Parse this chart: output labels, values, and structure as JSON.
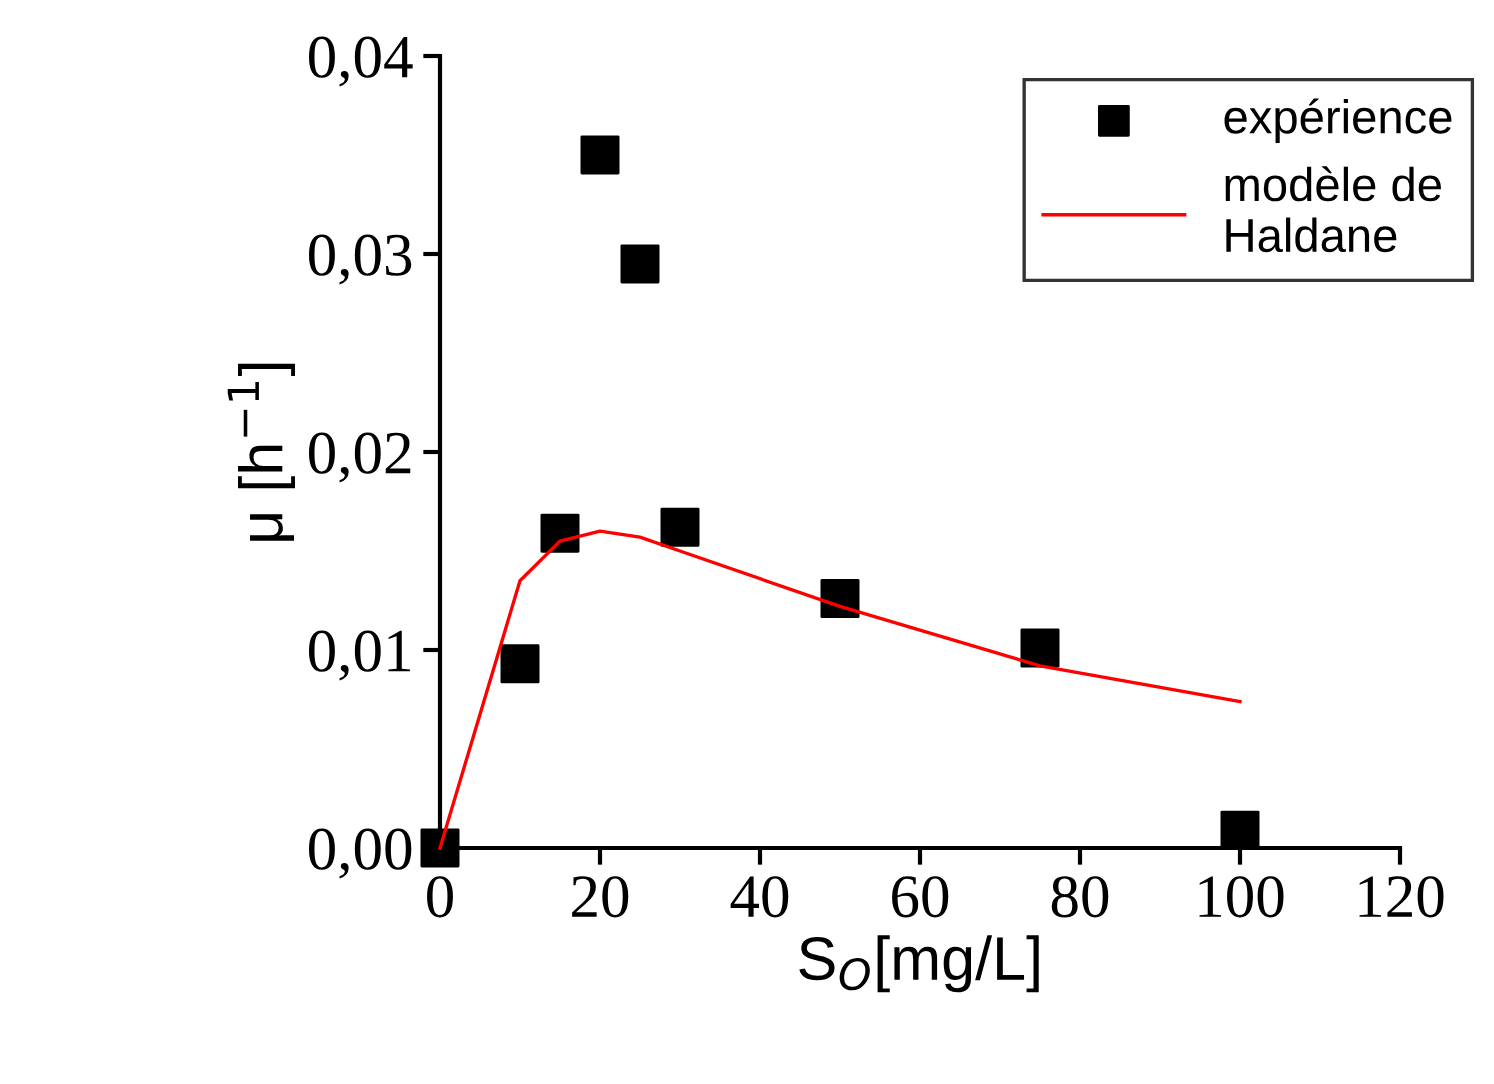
{
  "chart_data": {
    "type": "scatter",
    "xlabel": "S$_{O}$[mg/L]",
    "ylabel": "μ [h$^{−1}$]",
    "xlim": [
      0,
      120
    ],
    "xticks": [
      0,
      20,
      40,
      60,
      80,
      100,
      120
    ],
    "ylim": [
      0,
      0.04
    ],
    "yticks": [
      {
        "value": 0,
        "label": "0,00"
      },
      {
        "value": 0.01,
        "label": "0,01"
      },
      {
        "value": 0.02,
        "label": "0,02"
      },
      {
        "value": 0.03,
        "label": "0,03"
      },
      {
        "value": 0.04,
        "label": "0,04"
      }
    ],
    "grid": false,
    "legend": "top right",
    "series": [
      {
        "name": "expérience",
        "marker": "square",
        "color": "#000000",
        "x": [
          0,
          10,
          15,
          20,
          25,
          30,
          50,
          75,
          100
        ],
        "values": [
          0,
          0.0093,
          0.0159,
          0.035,
          0.0295,
          0.0162,
          0.0126,
          0.0101,
          0.0009
        ]
      },
      {
        "name": "modèle de\nHaldane",
        "type": "line",
        "marker": "none",
        "line_style": "solid",
        "color": "#ff0000",
        "x": [
          0,
          10,
          15,
          20,
          25,
          30,
          50,
          75,
          100
        ],
        "values": [
          0,
          0.0135,
          0.0155,
          0.016,
          0.0157,
          0.015,
          0.0122,
          0.0092,
          0.0074
        ]
      }
    ]
  }
}
